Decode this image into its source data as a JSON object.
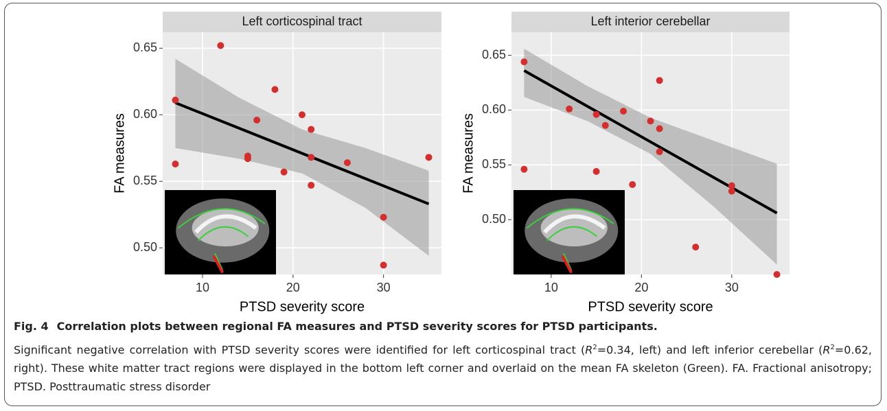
{
  "chart_data": [
    {
      "type": "scatter",
      "title": "Left corticospinal tract",
      "x_label": "PTSD severity score",
      "y_label": "FA measures",
      "x": [
        7,
        7,
        12,
        15,
        15,
        16,
        18,
        19,
        21,
        22,
        22,
        22,
        26,
        30,
        30,
        35
      ],
      "values": [
        0.611,
        0.563,
        0.652,
        0.569,
        0.567,
        0.596,
        0.619,
        0.557,
        0.6,
        0.589,
        0.568,
        0.547,
        0.564,
        0.523,
        0.487,
        0.568
      ],
      "color": "#d42f2f",
      "fit": {
        "x": [
          7,
          35
        ],
        "values": [
          0.609,
          0.533
        ],
        "color": "#000000"
      },
      "band": {
        "x": [
          7,
          14,
          21,
          28,
          35
        ],
        "upper": [
          0.642,
          0.613,
          0.589,
          0.575,
          0.558
        ],
        "lower": [
          0.575,
          0.567,
          0.556,
          0.53,
          0.494
        ],
        "color": "#999999"
      },
      "xlim": [
        5.6,
        36.4
      ],
      "ylim": [
        0.48,
        0.662
      ],
      "xticks": [
        10,
        20,
        30
      ],
      "yticks": [
        {
          "value": 0.5,
          "label": "0.50"
        },
        0.55,
        {
          "value": 0.6,
          "label": "0.60"
        },
        0.65
      ],
      "grid": true
    },
    {
      "type": "scatter",
      "title": "Left interior cerebellar",
      "x_label": "PTSD severity score",
      "y_label": "FA measures",
      "x": [
        7,
        7,
        12,
        15,
        15,
        16,
        18,
        19,
        21,
        22,
        22,
        22,
        26,
        30,
        30,
        35
      ],
      "values": [
        0.644,
        0.546,
        0.601,
        0.596,
        0.544,
        0.586,
        0.599,
        0.532,
        0.59,
        0.627,
        0.583,
        0.562,
        0.475,
        0.531,
        0.526,
        0.45
      ],
      "color": "#d42f2f",
      "fit": {
        "x": [
          7,
          35
        ],
        "values": [
          0.636,
          0.506
        ],
        "color": "#000000"
      },
      "band": {
        "x": [
          7,
          14,
          21,
          28,
          35
        ],
        "upper": [
          0.656,
          0.622,
          0.593,
          0.572,
          0.551
        ],
        "lower": [
          0.612,
          0.59,
          0.56,
          0.512,
          0.459
        ],
        "color": "#999999"
      },
      "xlim": [
        5.6,
        36.4
      ],
      "ylim": [
        0.45,
        0.671
      ],
      "xticks": [
        10,
        20,
        30
      ],
      "yticks": [
        {
          "value": 0.5,
          "label": "0.50"
        },
        0.55,
        {
          "value": 0.6,
          "label": "0.60"
        },
        0.65
      ],
      "grid": true
    }
  ],
  "caption": {
    "label": "Fig. 4",
    "title": "Correlation plots between regional FA measures and PTSD severity scores for PTSD participants.",
    "parts": [
      "Significant negative correlation with PTSD severity scores were identified for left corticospinal tract (",
      "R",
      "2",
      "=0.34, left) and left inferior cerebellar (",
      "R",
      "2",
      "=0.62, right). These white matter tract regions were displayed in the bottom left corner and overlaid on the mean FA skeleton (Green). FA. Fractional anisotropy; PTSD. Posttraumatic stress disorder"
    ]
  }
}
